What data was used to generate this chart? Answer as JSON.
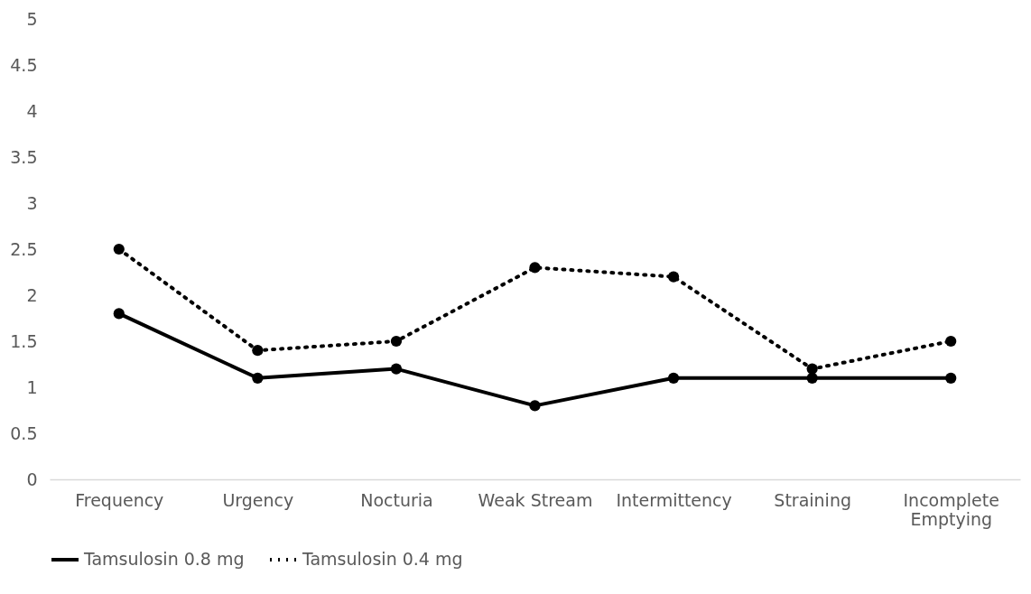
{
  "chart_data": {
    "type": "line",
    "categories": [
      "Frequency",
      "Urgency",
      "Nocturia",
      "Weak Stream",
      "Intermittency",
      "Straining",
      "Incomplete Emptying"
    ],
    "series": [
      {
        "name": "Tamsulosin 0.8 mg",
        "color": "#000000",
        "line_style": "solid",
        "values": [
          1.8,
          1.1,
          1.2,
          0.8,
          1.1,
          1.1,
          1.1
        ]
      },
      {
        "name": "Tamsulosin 0.4 mg",
        "color": "#000000",
        "line_style": "dotted",
        "values": [
          2.5,
          1.4,
          1.5,
          2.3,
          2.2,
          1.2,
          1.5
        ]
      }
    ],
    "ylim": [
      0,
      5
    ],
    "yticks": [
      0,
      0.5,
      1,
      1.5,
      2,
      2.5,
      3,
      3.5,
      4,
      4.5,
      5
    ],
    "grid": false,
    "legend": "bottom",
    "marker": "circle"
  }
}
